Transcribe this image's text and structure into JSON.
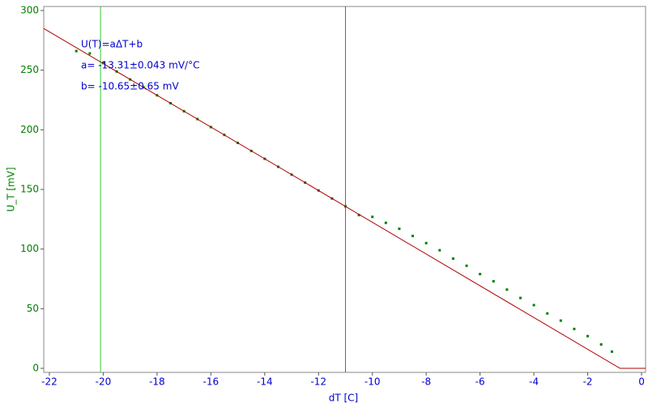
{
  "chart_data": {
    "type": "scatter",
    "x_label": "dT [C]",
    "y_label": "U_T [mV]",
    "annotations": [
      "U(T)=aΔT+b",
      "a= -13.31±0.043 mV/°C",
      "b= -10.65±0.65 mV"
    ],
    "xlim": [
      -22.21,
      0.15
    ],
    "ylim": [
      -3.4,
      303.4
    ],
    "xticks": [
      -22,
      -20,
      -18,
      -16,
      -14,
      -12,
      -10,
      -8,
      -6,
      -4,
      -2,
      0
    ],
    "yticks": [
      0,
      50,
      100,
      150,
      200,
      250,
      300
    ],
    "series": [
      {
        "color": "#008000",
        "x": [
          -21,
          -20.5,
          -20,
          -19.5,
          -19,
          -18.5,
          -18,
          -17.5,
          -17,
          -16.5,
          -16,
          -15.5,
          -15,
          -14.5,
          -14,
          -13.5,
          -13,
          -12.5,
          -12,
          -11.5,
          -11,
          -10.5,
          -10,
          -9.5,
          -9,
          -8.5,
          -8,
          -7.5,
          -7,
          -6.5,
          -6,
          -5.5,
          -5,
          -4.5,
          -4,
          -3.5,
          -3,
          -2.5,
          -2,
          -1.5,
          -1.1
        ],
        "values": [
          266,
          264,
          256,
          248.9,
          242.2,
          235.6,
          228.9,
          222.3,
          215.6,
          209,
          202.3,
          195.7,
          189,
          182.3,
          175.7,
          169,
          162.4,
          155.7,
          149.1,
          142.4,
          135.8,
          128.5,
          127,
          122,
          117,
          111,
          105,
          99,
          92,
          86,
          79,
          73,
          66,
          59,
          53,
          46,
          40,
          33,
          27,
          20,
          14
        ]
      },
      {
        "type": "line",
        "color": "#b00000",
        "x": [
          -22.21,
          -0.8,
          0.15
        ],
        "values": [
          284.96,
          0,
          0
        ]
      }
    ],
    "cursors": [
      {
        "x": -20.1,
        "color": "#33cc33"
      },
      {
        "x": -11,
        "color": "#cc3355"
      }
    ]
  }
}
